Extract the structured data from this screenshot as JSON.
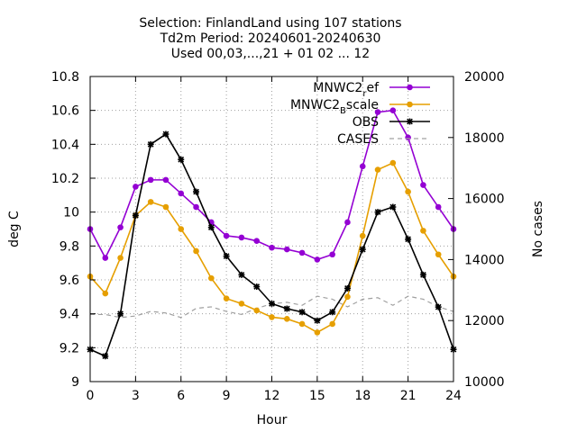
{
  "chart_data": {
    "type": "line",
    "title": [
      "Selection: FinlandLand using   107 stations",
      "Td2m   Period: 20240601-20240630",
      "Used 00,03,...,21 + 01 02 ... 12"
    ],
    "xlabel": "Hour",
    "ylabel": "deg C",
    "y2label": "No cases",
    "xlim": [
      0,
      24
    ],
    "ylim": [
      9,
      10.8
    ],
    "y2lim": [
      10000,
      20000
    ],
    "xticks": [
      "0",
      "3",
      "6",
      "9",
      "12",
      "15",
      "18",
      "21",
      "24"
    ],
    "yticks": [
      "9",
      "9.2",
      "9.4",
      "9.6",
      "9.8",
      "10",
      "10.2",
      "10.4",
      "10.6",
      "10.8"
    ],
    "y2ticks": [
      "10000",
      "12000",
      "14000",
      "16000",
      "18000",
      "20000"
    ],
    "grid": true,
    "legend_position": "top-right",
    "x": [
      0,
      1,
      2,
      3,
      4,
      5,
      6,
      7,
      8,
      9,
      10,
      11,
      12,
      13,
      14,
      15,
      16,
      17,
      18,
      19,
      20,
      21,
      22,
      23,
      24
    ],
    "series": [
      {
        "name": "MNWC2_ref",
        "legend_base": "MNWC2",
        "legend_sub": "r",
        "legend_tail": "ef",
        "axis": "y",
        "color": "#9400d3",
        "marker": "circle",
        "values": [
          9.9,
          9.73,
          9.91,
          10.15,
          10.19,
          10.19,
          10.11,
          10.03,
          9.94,
          9.86,
          9.85,
          9.83,
          9.79,
          9.78,
          9.76,
          9.72,
          9.75,
          9.94,
          10.27,
          10.59,
          10.6,
          10.44,
          10.16,
          10.03,
          9.9
        ]
      },
      {
        "name": "MNWC2_Bscale",
        "legend_base": "MNWC2",
        "legend_sub": "B",
        "legend_tail": "scale",
        "axis": "y",
        "color": "#e69f00",
        "marker": "circle",
        "values": [
          9.62,
          9.52,
          9.73,
          9.98,
          10.06,
          10.03,
          9.9,
          9.77,
          9.61,
          9.49,
          9.46,
          9.42,
          9.38,
          9.37,
          9.34,
          9.29,
          9.34,
          9.5,
          9.86,
          10.25,
          10.29,
          10.12,
          9.89,
          9.75,
          9.62
        ]
      },
      {
        "name": "OBS",
        "legend_base": "OBS",
        "legend_sub": "",
        "legend_tail": "",
        "axis": "y",
        "color": "#000000",
        "marker": "cross",
        "values": [
          9.19,
          9.15,
          9.4,
          9.98,
          10.4,
          10.46,
          10.31,
          10.12,
          9.91,
          9.74,
          9.63,
          9.56,
          9.46,
          9.43,
          9.41,
          9.36,
          9.41,
          9.55,
          9.78,
          10.0,
          10.03,
          9.84,
          9.63,
          9.44,
          9.19
        ]
      },
      {
        "name": "CASES",
        "legend_base": "CASES",
        "legend_sub": "",
        "legend_tail": "",
        "axis": "y2",
        "color": "#a0a0a0",
        "marker": "none",
        "dashed": true,
        "values": [
          12200,
          12200,
          12100,
          12150,
          12300,
          12250,
          12100,
          12400,
          12450,
          12300,
          12200,
          12400,
          12550,
          12600,
          12500,
          12800,
          12700,
          12450,
          12700,
          12750,
          12500,
          12800,
          12700,
          12450,
          12300
        ]
      }
    ]
  }
}
